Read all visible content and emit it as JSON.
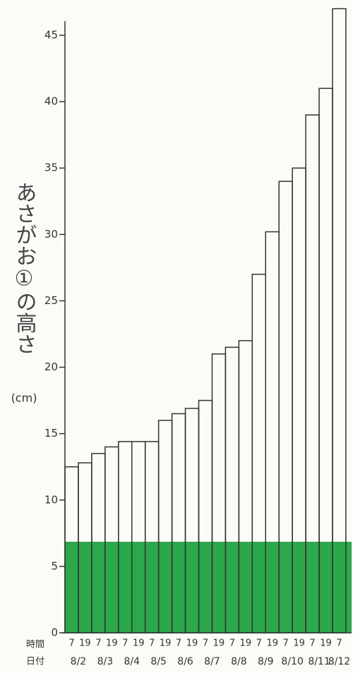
{
  "chart_data": {
    "type": "bar",
    "y_label": "あさがお①の高さ",
    "y_unit": "(cm)",
    "row_labels": [
      "時間",
      "日付"
    ],
    "categories": [
      "7",
      "19",
      "7",
      "19",
      "7",
      "19",
      "7",
      "19",
      "7",
      "19",
      "7",
      "19",
      "7",
      "19",
      "7",
      "19",
      "7",
      "19",
      "7",
      "19",
      "7"
    ],
    "dates": [
      "8/2",
      "8/3",
      "8/4",
      "8/5",
      "8/6",
      "8/7",
      "8/8",
      "8/9",
      "8/10",
      "8/11",
      "8/12"
    ],
    "values": [
      12.5,
      12.8,
      13.5,
      14,
      14.4,
      14.4,
      14.4,
      16,
      16.5,
      16.9,
      17.5,
      21,
      21.5,
      22,
      27,
      30.2,
      34,
      35,
      39,
      41,
      47
    ],
    "color": "#ffffff",
    "ylim": [
      0,
      45
    ],
    "yticks": [
      0,
      5,
      10,
      15,
      20,
      25,
      30,
      35,
      40,
      45
    ]
  }
}
